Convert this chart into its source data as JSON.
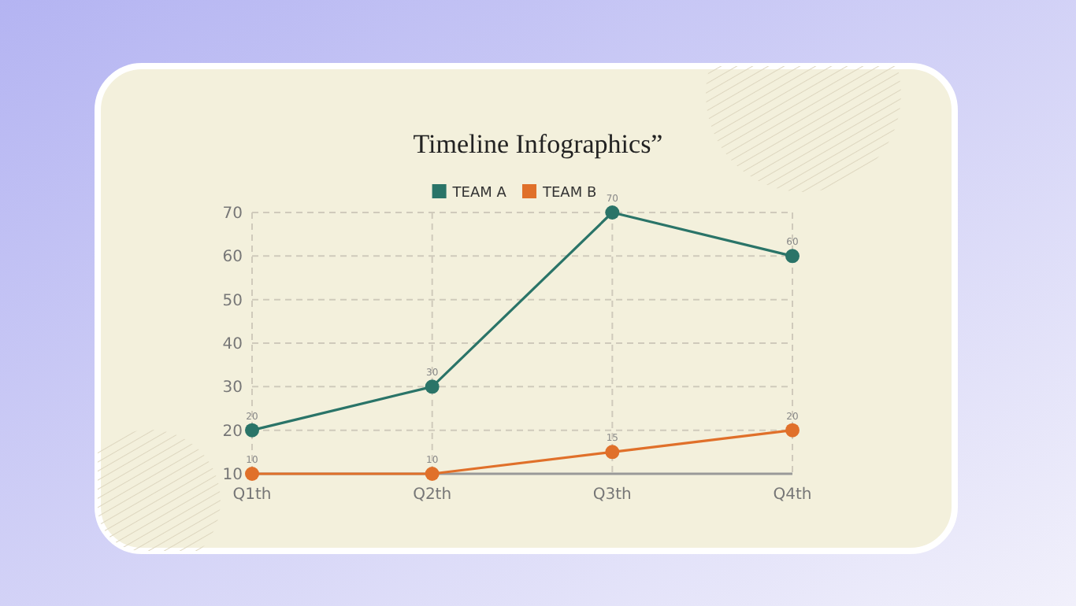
{
  "chart_data": {
    "type": "line",
    "title": "Timeline Infographics”",
    "categories": [
      "Q1th",
      "Q2th",
      "Q3th",
      "Q4th"
    ],
    "series": [
      {
        "name": "TEAM A",
        "color": "#2a7468",
        "values": [
          20,
          30,
          70,
          60
        ]
      },
      {
        "name": "TEAM B",
        "color": "#e0702a",
        "values": [
          10,
          10,
          15,
          20
        ]
      }
    ],
    "ylim": [
      10,
      70
    ],
    "yticks": [
      10,
      20,
      30,
      40,
      50,
      60,
      70
    ],
    "grid": true,
    "legend": "top",
    "marker": "circle",
    "line_style": "solid",
    "data_labels": true
  }
}
